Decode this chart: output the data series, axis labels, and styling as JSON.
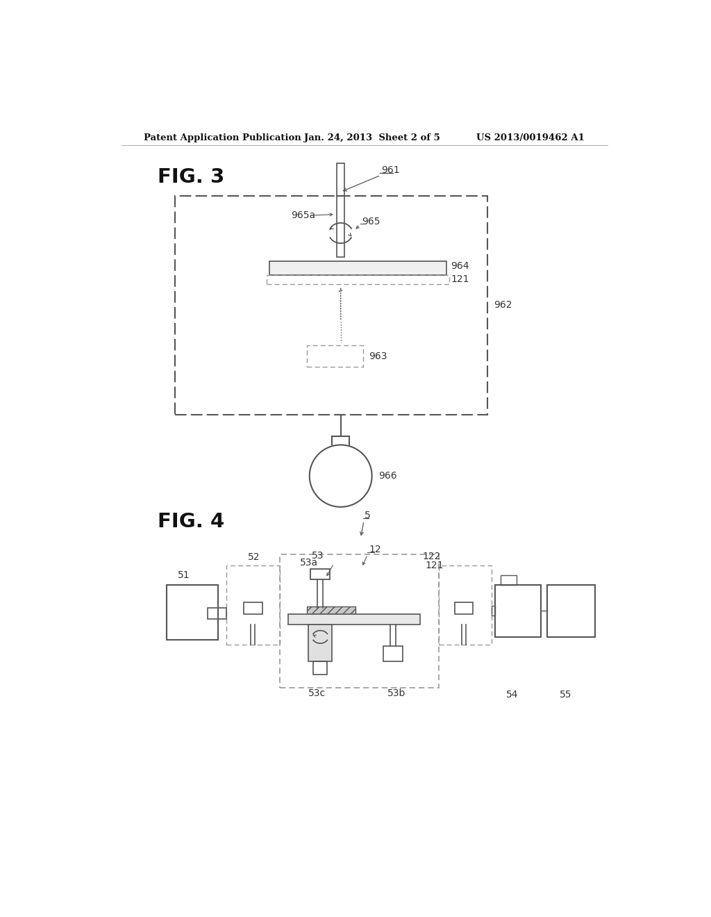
{
  "bg_color": "#ffffff",
  "header_left": "Patent Application Publication",
  "header_mid": "Jan. 24, 2013  Sheet 2 of 5",
  "header_right": "US 2013/0019462 A1",
  "fig3_label": "FIG. 3",
  "fig4_label": "FIG. 4",
  "lc": "#555555",
  "dc": "#999999",
  "text_color": "#333333"
}
